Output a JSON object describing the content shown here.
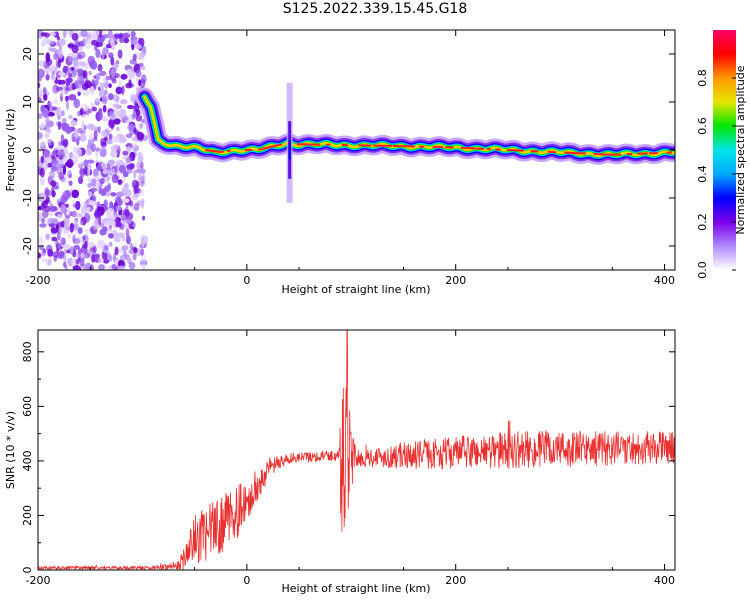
{
  "title": "S125.2022.339.15.45.G18",
  "chart_data": [
    {
      "type": "heatmap",
      "name": "spectrogram",
      "xlabel": "Height of straight line (km)",
      "ylabel": "Frequency (Hz)",
      "xlim": [
        -200,
        410
      ],
      "ylim": [
        -25,
        25
      ],
      "x_ticks": [
        -200,
        0,
        200,
        400
      ],
      "y_ticks": [
        -20,
        -10,
        0,
        10,
        20
      ],
      "colorbar": {
        "label": "Normalized spectral amplitude",
        "range": [
          0,
          1
        ],
        "ticks": [
          "0.0",
          "0.2",
          "0.4",
          "0.6",
          "0.8"
        ],
        "colormap": [
          "#ffffff",
          "#b088ff",
          "#7a00e6",
          "#0000ff",
          "#00aaff",
          "#00e6e6",
          "#00e600",
          "#e6e600",
          "#ff9900",
          "#ff0000",
          "#ff0066"
        ]
      },
      "noise_region_x": [
        -200,
        -98
      ],
      "ridge": [
        {
          "x": -98,
          "y": 11
        },
        {
          "x": -92,
          "y": 9
        },
        {
          "x": -88,
          "y": 5
        },
        {
          "x": -85,
          "y": 2
        },
        {
          "x": -80,
          "y": 1.5
        },
        {
          "x": -70,
          "y": 1
        },
        {
          "x": -50,
          "y": 0.5
        },
        {
          "x": -30,
          "y": -0.5
        },
        {
          "x": -10,
          "y": 0
        },
        {
          "x": 10,
          "y": 0
        },
        {
          "x": 30,
          "y": 1
        },
        {
          "x": 40,
          "y": 1.5
        },
        {
          "x": 45,
          "y": 1.2
        },
        {
          "x": 100,
          "y": 1
        },
        {
          "x": 150,
          "y": 0.8
        },
        {
          "x": 200,
          "y": 0.5
        },
        {
          "x": 250,
          "y": 0
        },
        {
          "x": 300,
          "y": -0.5
        },
        {
          "x": 350,
          "y": -1
        },
        {
          "x": 410,
          "y": -0.5
        }
      ],
      "spike": {
        "x": 41,
        "y_range": [
          -11,
          14
        ]
      }
    },
    {
      "type": "line",
      "name": "snr",
      "xlabel": "Height of straight line (km)",
      "ylabel": "SNR (10 * v/v)",
      "xlim": [
        -200,
        410
      ],
      "ylim": [
        0,
        880
      ],
      "x_ticks": [
        -200,
        0,
        200,
        400
      ],
      "y_ticks": [
        0,
        200,
        400,
        600,
        800
      ],
      "color": "#e83030",
      "envelope": [
        {
          "x": -200,
          "mean": 8,
          "amp": 6
        },
        {
          "x": -90,
          "mean": 8,
          "amp": 6
        },
        {
          "x": -65,
          "mean": 15,
          "amp": 20
        },
        {
          "x": -50,
          "mean": 110,
          "amp": 90
        },
        {
          "x": -30,
          "mean": 150,
          "amp": 110
        },
        {
          "x": -10,
          "mean": 210,
          "amp": 100
        },
        {
          "x": 10,
          "mean": 300,
          "amp": 70
        },
        {
          "x": 20,
          "mean": 370,
          "amp": 40
        },
        {
          "x": 40,
          "mean": 410,
          "amp": 20
        },
        {
          "x": 80,
          "mean": 420,
          "amp": 20
        },
        {
          "x": 89,
          "mean": 420,
          "amp": 40
        },
        {
          "x": 90,
          "mean": 400,
          "amp": 300
        },
        {
          "x": 95,
          "mean": 400,
          "amp": 350
        },
        {
          "x": 100,
          "mean": 410,
          "amp": 120
        },
        {
          "x": 105,
          "mean": 410,
          "amp": 30
        },
        {
          "x": 150,
          "mean": 420,
          "amp": 50
        },
        {
          "x": 250,
          "mean": 440,
          "amp": 70
        },
        {
          "x": 410,
          "mean": 450,
          "amp": 60
        }
      ],
      "peak": {
        "x": 96,
        "y": 880
      }
    }
  ]
}
